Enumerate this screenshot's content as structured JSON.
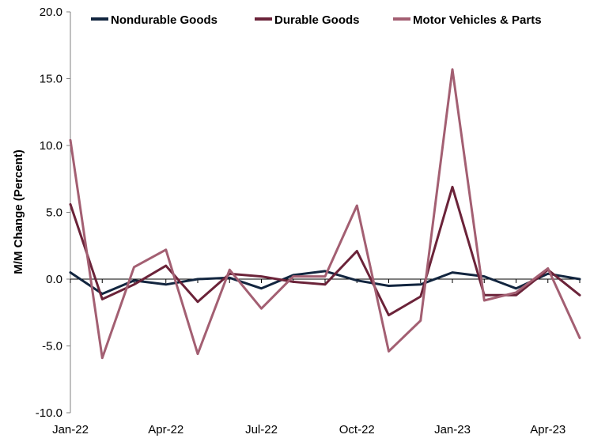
{
  "chart_data": {
    "type": "line",
    "title": "",
    "xlabel": "",
    "ylabel": "M/M Change (Percent)",
    "ylim": [
      -10,
      20
    ],
    "yticks": [
      "-10.0",
      "-5.0",
      "0.0",
      "5.0",
      "10.0",
      "15.0",
      "20.0"
    ],
    "x": [
      "Jan-22",
      "Feb-22",
      "Mar-22",
      "Apr-22",
      "May-22",
      "Jun-22",
      "Jul-22",
      "Aug-22",
      "Sep-22",
      "Oct-22",
      "Nov-22",
      "Dec-22",
      "Jan-23",
      "Feb-23",
      "Mar-23",
      "Apr-23",
      "May-23"
    ],
    "xtick_labels": [
      "Jan-22",
      "Apr-22",
      "Jul-22",
      "Oct-22",
      "Jan-23",
      "Apr-23"
    ],
    "grid": false,
    "legend_position": "top",
    "series": [
      {
        "name": "Nondurable Goods",
        "color": "#12253f",
        "values": [
          0.5,
          -1.1,
          -0.1,
          -0.4,
          0.0,
          0.1,
          -0.7,
          0.3,
          0.6,
          -0.1,
          -0.5,
          -0.4,
          0.5,
          0.2,
          -0.7,
          0.4,
          0.0
        ]
      },
      {
        "name": "Durable Goods",
        "color": "#6b2339",
        "values": [
          5.6,
          -1.5,
          -0.4,
          1.0,
          -1.7,
          0.4,
          0.2,
          -0.2,
          -0.4,
          2.1,
          -2.7,
          -1.3,
          6.9,
          -1.2,
          -1.2,
          0.7,
          -1.2
        ]
      },
      {
        "name": "Motor Vehicles & Parts",
        "color": "#a35f72",
        "values": [
          10.4,
          -5.9,
          0.9,
          2.2,
          -5.6,
          0.7,
          -2.2,
          0.2,
          0.2,
          5.5,
          -5.4,
          -3.1,
          15.7,
          -1.6,
          -1.0,
          0.8,
          -4.4
        ]
      }
    ]
  }
}
